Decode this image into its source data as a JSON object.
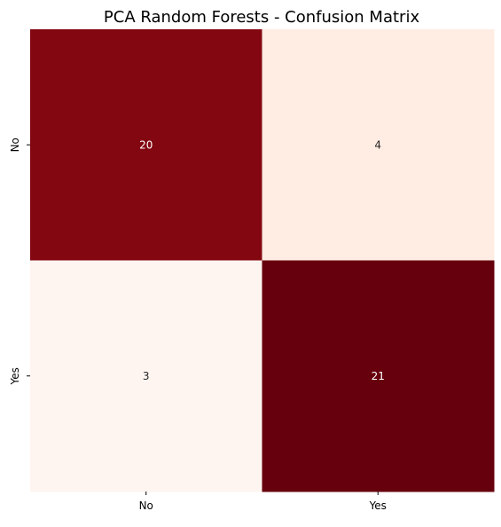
{
  "chart_data": {
    "type": "heatmap",
    "title": "PCA Random Forests - Confusion Matrix",
    "xlabel": "",
    "ylabel": "",
    "x_categories": [
      "No",
      "Yes"
    ],
    "y_categories": [
      "No",
      "Yes"
    ],
    "values": [
      [
        20,
        4
      ],
      [
        3,
        21
      ]
    ],
    "color_scale": "Reds",
    "vmin": 3,
    "vmax": 21,
    "colorbar": false,
    "annotations": true,
    "grid": false,
    "legend": "none",
    "colors": {
      "low": "#fff5f0",
      "high": "#67000d",
      "annot_dark": "#262626",
      "annot_light": "#ffffff"
    }
  }
}
